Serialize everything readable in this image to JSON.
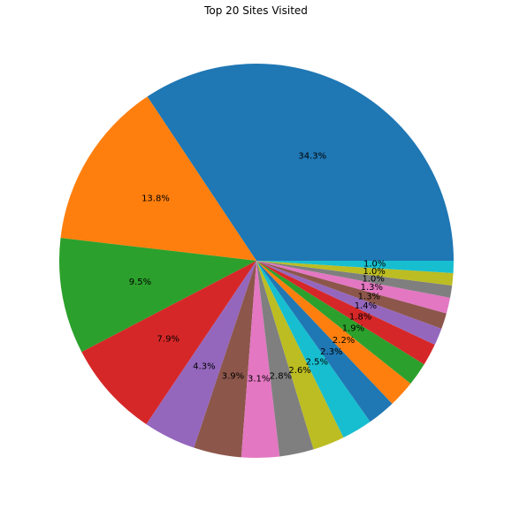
{
  "chart_data": {
    "type": "pie",
    "title": "Top 20 Sites Visited",
    "start_angle_deg": 0,
    "direction": "counterclockwise",
    "values": [
      34.3,
      13.8,
      9.5,
      7.9,
      4.3,
      3.9,
      3.1,
      2.8,
      2.6,
      2.5,
      2.3,
      2.2,
      1.9,
      1.8,
      1.4,
      1.3,
      1.3,
      1.0,
      1.0,
      1.0
    ],
    "labels": [
      "34.3%",
      "13.8%",
      "9.5%",
      "7.9%",
      "4.3%",
      "3.9%",
      "3.1%",
      "2.8%",
      "2.6%",
      "2.5%",
      "2.3%",
      "2.2%",
      "1.9%",
      "1.8%",
      "1.4%",
      "1.3%",
      "1.3%",
      "1.0%",
      "1.0%",
      "1.0%"
    ],
    "colors": [
      "#1f77b4",
      "#ff7f0e",
      "#2ca02c",
      "#d62728",
      "#9467bd",
      "#8c564b",
      "#e377c2",
      "#7f7f7f",
      "#bcbd22",
      "#17becf",
      "#1f77b4",
      "#ff7f0e",
      "#2ca02c",
      "#d62728",
      "#9467bd",
      "#8c564b",
      "#e377c2",
      "#7f7f7f",
      "#bcbd22",
      "#17becf"
    ]
  }
}
